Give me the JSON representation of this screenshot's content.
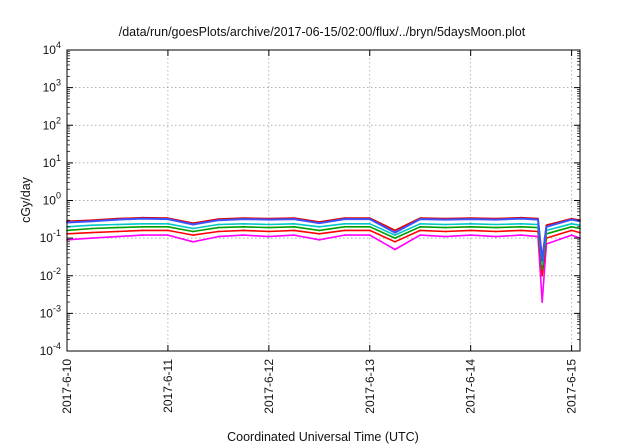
{
  "chart_data": {
    "type": "line",
    "title": "/data/run/goesPlots/archive/2017-06-15/02:00/flux/../bryn/5daysMoon.plot",
    "xlabel": "Coordinated Universal Time (UTC)",
    "ylabel": "cGy/day",
    "y_scale": "log",
    "ylim": [
      0.0001,
      10000
    ],
    "y_ticks": [
      {
        "value": 0.0001,
        "base": "10",
        "exp": "-4"
      },
      {
        "value": 0.001,
        "base": "10",
        "exp": "-3"
      },
      {
        "value": 0.01,
        "base": "10",
        "exp": "-2"
      },
      {
        "value": 0.1,
        "base": "10",
        "exp": "-1"
      },
      {
        "value": 1,
        "base": "10",
        "exp": "0"
      },
      {
        "value": 10,
        "base": "10",
        "exp": "1"
      },
      {
        "value": 100,
        "base": "10",
        "exp": "2"
      },
      {
        "value": 1000,
        "base": "10",
        "exp": "3"
      },
      {
        "value": 10000,
        "base": "10",
        "exp": "4"
      }
    ],
    "xlim": [
      "2017-06-10T00:00",
      "2017-06-15T02:00"
    ],
    "x_ticks": [
      {
        "value": "2017-06-10T00:00",
        "label": "2017-6-10"
      },
      {
        "value": "2017-06-11T00:00",
        "label": "2017-6-11"
      },
      {
        "value": "2017-06-12T00:00",
        "label": "2017-6-12"
      },
      {
        "value": "2017-06-13T00:00",
        "label": "2017-6-13"
      },
      {
        "value": "2017-06-14T00:00",
        "label": "2017-6-14"
      },
      {
        "value": "2017-06-15T00:00",
        "label": "2017-6-15"
      }
    ],
    "grid": true,
    "x": [
      "2017-06-10T00:00",
      "2017-06-10T06:00",
      "2017-06-10T12:00",
      "2017-06-10T18:00",
      "2017-06-11T00:00",
      "2017-06-11T06:00",
      "2017-06-11T12:00",
      "2017-06-11T18:00",
      "2017-06-12T00:00",
      "2017-06-12T06:00",
      "2017-06-12T12:00",
      "2017-06-12T18:00",
      "2017-06-13T00:00",
      "2017-06-13T06:00",
      "2017-06-13T12:00",
      "2017-06-13T18:00",
      "2017-06-14T00:00",
      "2017-06-14T06:00",
      "2017-06-14T12:00",
      "2017-06-14T16:00",
      "2017-06-14T17:00",
      "2017-06-14T18:00",
      "2017-06-15T00:00",
      "2017-06-15T02:00"
    ],
    "series": [
      {
        "color": "#ff00ff",
        "values": [
          0.09,
          0.1,
          0.11,
          0.12,
          0.12,
          0.08,
          0.11,
          0.12,
          0.11,
          0.12,
          0.09,
          0.12,
          0.12,
          0.05,
          0.12,
          0.11,
          0.12,
          0.11,
          0.12,
          0.11,
          0.002,
          0.07,
          0.12,
          0.1
        ]
      },
      {
        "color": "#ff0000",
        "values": [
          0.13,
          0.14,
          0.15,
          0.16,
          0.16,
          0.12,
          0.15,
          0.16,
          0.15,
          0.16,
          0.13,
          0.16,
          0.16,
          0.08,
          0.16,
          0.15,
          0.16,
          0.15,
          0.16,
          0.15,
          0.01,
          0.1,
          0.16,
          0.14
        ]
      },
      {
        "color": "#00a000",
        "values": [
          0.16,
          0.18,
          0.19,
          0.2,
          0.2,
          0.15,
          0.19,
          0.2,
          0.19,
          0.2,
          0.16,
          0.2,
          0.2,
          0.1,
          0.2,
          0.19,
          0.2,
          0.19,
          0.2,
          0.19,
          0.015,
          0.13,
          0.2,
          0.18
        ]
      },
      {
        "color": "#00c8c8",
        "values": [
          0.2,
          0.22,
          0.23,
          0.24,
          0.24,
          0.18,
          0.23,
          0.24,
          0.23,
          0.24,
          0.2,
          0.24,
          0.24,
          0.12,
          0.24,
          0.23,
          0.24,
          0.23,
          0.24,
          0.23,
          0.02,
          0.16,
          0.24,
          0.22
        ]
      },
      {
        "color": "#e00000",
        "values": [
          0.28,
          0.3,
          0.33,
          0.35,
          0.34,
          0.25,
          0.32,
          0.34,
          0.33,
          0.34,
          0.27,
          0.34,
          0.34,
          0.16,
          0.34,
          0.33,
          0.34,
          0.33,
          0.35,
          0.33,
          0.03,
          0.22,
          0.33,
          0.3
        ]
      },
      {
        "color": "#3a52ff",
        "values": [
          0.26,
          0.28,
          0.31,
          0.33,
          0.32,
          0.23,
          0.3,
          0.32,
          0.31,
          0.32,
          0.25,
          0.32,
          0.32,
          0.14,
          0.32,
          0.31,
          0.32,
          0.31,
          0.33,
          0.31,
          0.025,
          0.2,
          0.31,
          0.28
        ]
      }
    ]
  }
}
